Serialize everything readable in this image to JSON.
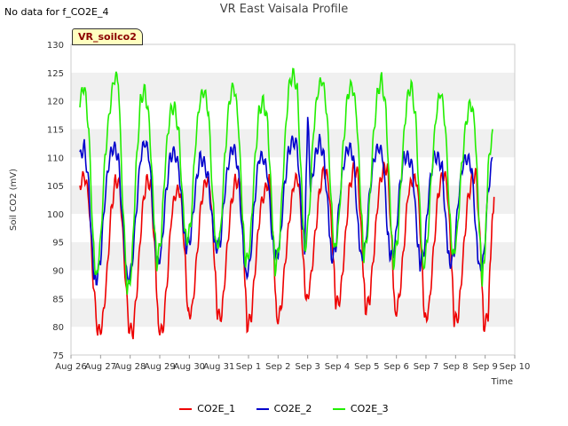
{
  "header": {
    "nodata": "No data for f_CO2E_4",
    "title": "VR East Vaisala Profile",
    "badge": "VR_soilco2"
  },
  "chart_data": {
    "type": "line",
    "title": "VR East Vaisala Profile",
    "xlabel": "Time",
    "ylabel": "Soil CO2 (mV)",
    "x_ticks": [
      "Aug 26",
      "Aug 27",
      "Aug 28",
      "Aug 29",
      "Aug 30",
      "Aug 31",
      "Sep 1",
      "Sep 2",
      "Sep 3",
      "Sep 4",
      "Sep 5",
      "Sep 6",
      "Sep 7",
      "Sep 8",
      "Sep 9",
      "Sep 10"
    ],
    "x_range": [
      "Aug 26",
      "Sep 10"
    ],
    "ylim": [
      75,
      130
    ],
    "y_ticks": [
      75,
      80,
      85,
      90,
      95,
      100,
      105,
      110,
      115,
      120,
      125,
      130
    ],
    "grid": true,
    "legend_position": "bottom-center",
    "series": [
      {
        "name": "CO2E_1",
        "color": "#ee0000",
        "points": [
          [
            0.3,
            105
          ],
          [
            0.45,
            107
          ],
          [
            0.6,
            103
          ],
          [
            0.75,
            88
          ],
          [
            0.9,
            79
          ],
          [
            1.05,
            80
          ],
          [
            1.2,
            88
          ],
          [
            1.35,
            100
          ],
          [
            1.5,
            106
          ],
          [
            1.65,
            105
          ],
          [
            1.8,
            92
          ],
          [
            1.95,
            80
          ],
          [
            2.1,
            79
          ],
          [
            2.25,
            88
          ],
          [
            2.4,
            100
          ],
          [
            2.55,
            106
          ],
          [
            2.7,
            105
          ],
          [
            2.85,
            92
          ],
          [
            2.95,
            80
          ],
          [
            3.1,
            79
          ],
          [
            3.25,
            88
          ],
          [
            3.4,
            100
          ],
          [
            3.55,
            104
          ],
          [
            3.7,
            104
          ],
          [
            3.85,
            93
          ],
          [
            3.95,
            82
          ],
          [
            4.1,
            83
          ],
          [
            4.25,
            92
          ],
          [
            4.4,
            102
          ],
          [
            4.55,
            106
          ],
          [
            4.7,
            105
          ],
          [
            4.85,
            92
          ],
          [
            4.95,
            82
          ],
          [
            5.1,
            82
          ],
          [
            5.25,
            92
          ],
          [
            5.4,
            101
          ],
          [
            5.55,
            106
          ],
          [
            5.7,
            105
          ],
          [
            5.85,
            92
          ],
          [
            5.95,
            80
          ],
          [
            6.1,
            82
          ],
          [
            6.25,
            92
          ],
          [
            6.4,
            101
          ],
          [
            6.55,
            104
          ],
          [
            6.7,
            106
          ],
          [
            6.85,
            94
          ],
          [
            6.95,
            81
          ],
          [
            7.1,
            83
          ],
          [
            7.25,
            92
          ],
          [
            7.4,
            100
          ],
          [
            7.55,
            106
          ],
          [
            7.7,
            106
          ],
          [
            7.85,
            92
          ],
          [
            7.95,
            84
          ],
          [
            8.1,
            88
          ],
          [
            8.25,
            96
          ],
          [
            8.4,
            104
          ],
          [
            8.55,
            108
          ],
          [
            8.7,
            106
          ],
          [
            8.85,
            94
          ],
          [
            8.95,
            84
          ],
          [
            9.1,
            85
          ],
          [
            9.25,
            94
          ],
          [
            9.4,
            104
          ],
          [
            9.55,
            108
          ],
          [
            9.7,
            107
          ],
          [
            9.85,
            93
          ],
          [
            9.95,
            83
          ],
          [
            10.1,
            85
          ],
          [
            10.25,
            94
          ],
          [
            10.4,
            104
          ],
          [
            10.55,
            108
          ],
          [
            10.7,
            108
          ],
          [
            10.85,
            94
          ],
          [
            10.95,
            82
          ],
          [
            11.1,
            85
          ],
          [
            11.25,
            94
          ],
          [
            11.4,
            104
          ],
          [
            11.55,
            106
          ],
          [
            11.7,
            106
          ],
          [
            11.85,
            93
          ],
          [
            11.95,
            81
          ],
          [
            12.1,
            83
          ],
          [
            12.25,
            93
          ],
          [
            12.4,
            103
          ],
          [
            12.55,
            107
          ],
          [
            12.7,
            106
          ],
          [
            12.85,
            93
          ],
          [
            12.95,
            81
          ],
          [
            13.1,
            82
          ],
          [
            13.25,
            92
          ],
          [
            13.4,
            102
          ],
          [
            13.55,
            106
          ],
          [
            13.7,
            107
          ],
          [
            13.85,
            93
          ],
          [
            13.95,
            80
          ],
          [
            14.1,
            82
          ],
          [
            14.2,
            95
          ],
          [
            14.3,
            103
          ]
        ]
      },
      {
        "name": "CO2E_2",
        "color": "#0000cc",
        "points": [
          [
            0.3,
            110
          ],
          [
            0.45,
            112
          ],
          [
            0.6,
            105
          ],
          [
            0.75,
            90
          ],
          [
            0.85,
            88
          ],
          [
            1.0,
            92
          ],
          [
            1.15,
            103
          ],
          [
            1.3,
            110
          ],
          [
            1.45,
            112
          ],
          [
            1.6,
            110
          ],
          [
            1.75,
            98
          ],
          [
            1.9,
            88
          ],
          [
            2.05,
            90
          ],
          [
            2.2,
            100
          ],
          [
            2.35,
            110
          ],
          [
            2.5,
            113
          ],
          [
            2.65,
            110
          ],
          [
            2.8,
            98
          ],
          [
            2.9,
            91
          ],
          [
            3.05,
            93
          ],
          [
            3.2,
            103
          ],
          [
            3.35,
            110
          ],
          [
            3.5,
            111
          ],
          [
            3.65,
            108
          ],
          [
            3.8,
            98
          ],
          [
            3.9,
            94
          ],
          [
            4.05,
            96
          ],
          [
            4.2,
            104
          ],
          [
            4.35,
            110
          ],
          [
            4.5,
            109
          ],
          [
            4.65,
            106
          ],
          [
            4.8,
            97
          ],
          [
            4.9,
            94
          ],
          [
            5.05,
            95
          ],
          [
            5.2,
            104
          ],
          [
            5.35,
            110
          ],
          [
            5.5,
            112
          ],
          [
            5.65,
            108
          ],
          [
            5.8,
            96
          ],
          [
            5.9,
            89
          ],
          [
            6.05,
            91
          ],
          [
            6.2,
            102
          ],
          [
            6.35,
            110
          ],
          [
            6.5,
            110
          ],
          [
            6.65,
            107
          ],
          [
            6.8,
            96
          ],
          [
            6.9,
            92
          ],
          [
            7.05,
            94
          ],
          [
            7.2,
            104
          ],
          [
            7.35,
            111
          ],
          [
            7.5,
            113
          ],
          [
            7.65,
            112
          ],
          [
            7.8,
            99
          ],
          [
            7.9,
            94
          ],
          [
            8.0,
            118
          ],
          [
            8.1,
            104
          ],
          [
            8.25,
            110
          ],
          [
            8.4,
            113
          ],
          [
            8.55,
            110
          ],
          [
            8.7,
            100
          ],
          [
            8.8,
            92
          ],
          [
            8.95,
            94
          ],
          [
            9.1,
            104
          ],
          [
            9.25,
            110
          ],
          [
            9.4,
            112
          ],
          [
            9.55,
            110
          ],
          [
            9.7,
            98
          ],
          [
            9.8,
            92
          ],
          [
            9.95,
            94
          ],
          [
            10.1,
            104
          ],
          [
            10.25,
            110
          ],
          [
            10.4,
            112
          ],
          [
            10.55,
            110
          ],
          [
            10.7,
            97
          ],
          [
            10.8,
            92
          ],
          [
            10.95,
            94
          ],
          [
            11.1,
            104
          ],
          [
            11.25,
            110
          ],
          [
            11.4,
            110
          ],
          [
            11.55,
            108
          ],
          [
            11.7,
            96
          ],
          [
            11.8,
            91
          ],
          [
            11.95,
            94
          ],
          [
            12.1,
            104
          ],
          [
            12.25,
            110
          ],
          [
            12.4,
            110
          ],
          [
            12.55,
            108
          ],
          [
            12.7,
            96
          ],
          [
            12.8,
            91
          ],
          [
            12.95,
            93
          ],
          [
            13.1,
            103
          ],
          [
            13.25,
            109
          ],
          [
            13.4,
            110
          ],
          [
            13.55,
            108
          ],
          [
            13.7,
            96
          ],
          [
            13.8,
            90
          ],
          [
            13.95,
            92
          ],
          [
            14.1,
            104
          ],
          [
            14.25,
            110
          ]
        ]
      },
      {
        "name": "CO2E_3",
        "color": "#22ee00",
        "points": [
          [
            0.3,
            120
          ],
          [
            0.45,
            123
          ],
          [
            0.6,
            115
          ],
          [
            0.75,
            95
          ],
          [
            0.85,
            88
          ],
          [
            1.0,
            95
          ],
          [
            1.15,
            110
          ],
          [
            1.3,
            118
          ],
          [
            1.45,
            124
          ],
          [
            1.6,
            124
          ],
          [
            1.75,
            102
          ],
          [
            1.9,
            86
          ],
          [
            2.05,
            90
          ],
          [
            2.2,
            108
          ],
          [
            2.35,
            120
          ],
          [
            2.5,
            122
          ],
          [
            2.65,
            116
          ],
          [
            2.8,
            100
          ],
          [
            2.9,
            91
          ],
          [
            3.05,
            96
          ],
          [
            3.2,
            110
          ],
          [
            3.35,
            118
          ],
          [
            3.5,
            119
          ],
          [
            3.65,
            114
          ],
          [
            3.8,
            100
          ],
          [
            3.9,
            95
          ],
          [
            4.05,
            98
          ],
          [
            4.2,
            112
          ],
          [
            4.35,
            120
          ],
          [
            4.5,
            122
          ],
          [
            4.65,
            118
          ],
          [
            4.8,
            102
          ],
          [
            4.9,
            94
          ],
          [
            5.05,
            96
          ],
          [
            5.2,
            110
          ],
          [
            5.35,
            120
          ],
          [
            5.5,
            123
          ],
          [
            5.65,
            117
          ],
          [
            5.8,
            100
          ],
          [
            5.9,
            91
          ],
          [
            6.05,
            94
          ],
          [
            6.2,
            108
          ],
          [
            6.35,
            118
          ],
          [
            6.5,
            120
          ],
          [
            6.65,
            116
          ],
          [
            6.8,
            100
          ],
          [
            6.9,
            90
          ],
          [
            7.05,
            95
          ],
          [
            7.2,
            110
          ],
          [
            7.35,
            122
          ],
          [
            7.5,
            125
          ],
          [
            7.65,
            122
          ],
          [
            7.8,
            104
          ],
          [
            7.9,
            93
          ],
          [
            8.05,
            100
          ],
          [
            8.2,
            115
          ],
          [
            8.35,
            122
          ],
          [
            8.5,
            124
          ],
          [
            8.65,
            118
          ],
          [
            8.8,
            102
          ],
          [
            8.9,
            93
          ],
          [
            9.05,
            98
          ],
          [
            9.2,
            112
          ],
          [
            9.35,
            121
          ],
          [
            9.5,
            123
          ],
          [
            9.65,
            118
          ],
          [
            9.8,
            102
          ],
          [
            9.9,
            92
          ],
          [
            10.05,
            98
          ],
          [
            10.2,
            112
          ],
          [
            10.35,
            121
          ],
          [
            10.5,
            124
          ],
          [
            10.65,
            118
          ],
          [
            10.8,
            100
          ],
          [
            10.9,
            91
          ],
          [
            11.05,
            96
          ],
          [
            11.2,
            110
          ],
          [
            11.35,
            120
          ],
          [
            11.5,
            123
          ],
          [
            11.65,
            117
          ],
          [
            11.8,
            100
          ],
          [
            11.9,
            90
          ],
          [
            12.05,
            95
          ],
          [
            12.2,
            108
          ],
          [
            12.35,
            118
          ],
          [
            12.5,
            122
          ],
          [
            12.65,
            116
          ],
          [
            12.8,
            100
          ],
          [
            12.9,
            92
          ],
          [
            13.05,
            96
          ],
          [
            13.2,
            108
          ],
          [
            13.35,
            116
          ],
          [
            13.5,
            120
          ],
          [
            13.65,
            116
          ],
          [
            13.8,
            98
          ],
          [
            13.9,
            88
          ],
          [
            14.0,
            94
          ],
          [
            14.1,
            108
          ],
          [
            14.25,
            115
          ]
        ]
      }
    ]
  }
}
